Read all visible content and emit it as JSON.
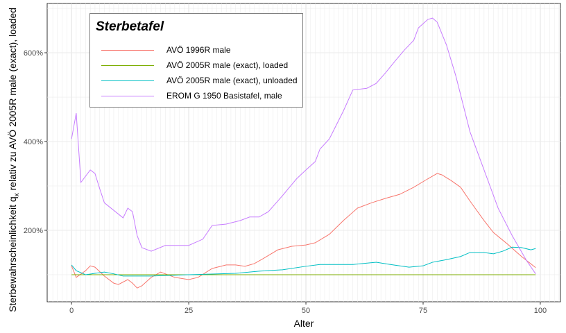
{
  "chart_data": {
    "type": "line",
    "xlabel": "Alter",
    "ylabel_parts": [
      "Sterbewahrscheinlichkeit  q",
      "x",
      " relativ zu AVÖ 2005R male (exact), loaded"
    ],
    "xlim": [
      -5.2,
      104.3
    ],
    "ylim": [
      39,
      711
    ],
    "x_ticks": [
      0,
      25,
      50,
      75,
      100
    ],
    "y_ticks": [
      200,
      400,
      600
    ],
    "y_tick_labels": [
      "200%",
      "400%",
      "600%"
    ],
    "grid": true,
    "legend": {
      "title": "Sterbetafel",
      "placement": "top-left"
    },
    "series": [
      {
        "name": "AVÖ 1996R male",
        "color": "#F8766D",
        "x": [
          0,
          1,
          3,
          4,
          5,
          7,
          9,
          10,
          12,
          13,
          14,
          15,
          17,
          19,
          20,
          22,
          25,
          27,
          30,
          33,
          35,
          37,
          39,
          41,
          44,
          47,
          50,
          52,
          55,
          58,
          61,
          64,
          67,
          70,
          73,
          76,
          78,
          79,
          81,
          83,
          85,
          88,
          90,
          93,
          96,
          99
        ],
        "y": [
          120,
          94,
          109,
          120,
          117,
          97,
          81,
          78,
          89,
          81,
          70,
          75,
          94,
          106,
          102,
          94,
          89,
          94,
          114,
          122,
          122,
          119,
          125,
          137,
          156,
          164,
          167,
          172,
          191,
          222,
          250,
          262,
          272,
          281,
          297,
          316,
          328,
          325,
          312,
          297,
          266,
          222,
          195,
          169,
          141,
          116
        ]
      },
      {
        "name": "AVÖ 2005R male (exact), loaded",
        "color": "#7CAE00",
        "x": [
          0,
          99
        ],
        "y": [
          100,
          100
        ]
      },
      {
        "name": "AVÖ 2005R male (exact), unloaded",
        "color": "#00BFC4",
        "x": [
          0,
          1,
          3,
          5,
          7,
          9,
          11,
          13,
          17,
          25,
          35,
          40,
          45,
          50,
          53,
          60,
          65,
          68,
          72,
          75,
          77,
          80,
          83,
          85,
          88,
          90,
          92,
          94,
          96,
          98,
          99
        ],
        "y": [
          122,
          109,
          100,
          103,
          106,
          102,
          97,
          97,
          97,
          100,
          103,
          108,
          111,
          119,
          123,
          123,
          128,
          123,
          117,
          120,
          128,
          134,
          141,
          150,
          150,
          147,
          153,
          162,
          161,
          156,
          159
        ]
      },
      {
        "name": "EROM G 1950 Basistafel, male",
        "color": "#C77CFF",
        "x": [
          0,
          1,
          2,
          4,
          5,
          6,
          7,
          9,
          11,
          12,
          13,
          14,
          15,
          17,
          20,
          25,
          28,
          30,
          33,
          36,
          38,
          40,
          42,
          45,
          48,
          50,
          52,
          53,
          55,
          58,
          60,
          63,
          65,
          67,
          69,
          71,
          73,
          74,
          76,
          77,
          78,
          80,
          82,
          85,
          88,
          91,
          94,
          97,
          99
        ],
        "y": [
          406,
          464,
          308,
          336,
          328,
          294,
          262,
          245,
          228,
          250,
          242,
          188,
          161,
          153,
          166,
          166,
          180,
          211,
          214,
          222,
          230,
          230,
          242,
          278,
          316,
          336,
          355,
          383,
          406,
          469,
          516,
          520,
          531,
          555,
          581,
          606,
          628,
          656,
          675,
          678,
          669,
          617,
          547,
          422,
          336,
          250,
          188,
          133,
          102
        ]
      }
    ]
  }
}
